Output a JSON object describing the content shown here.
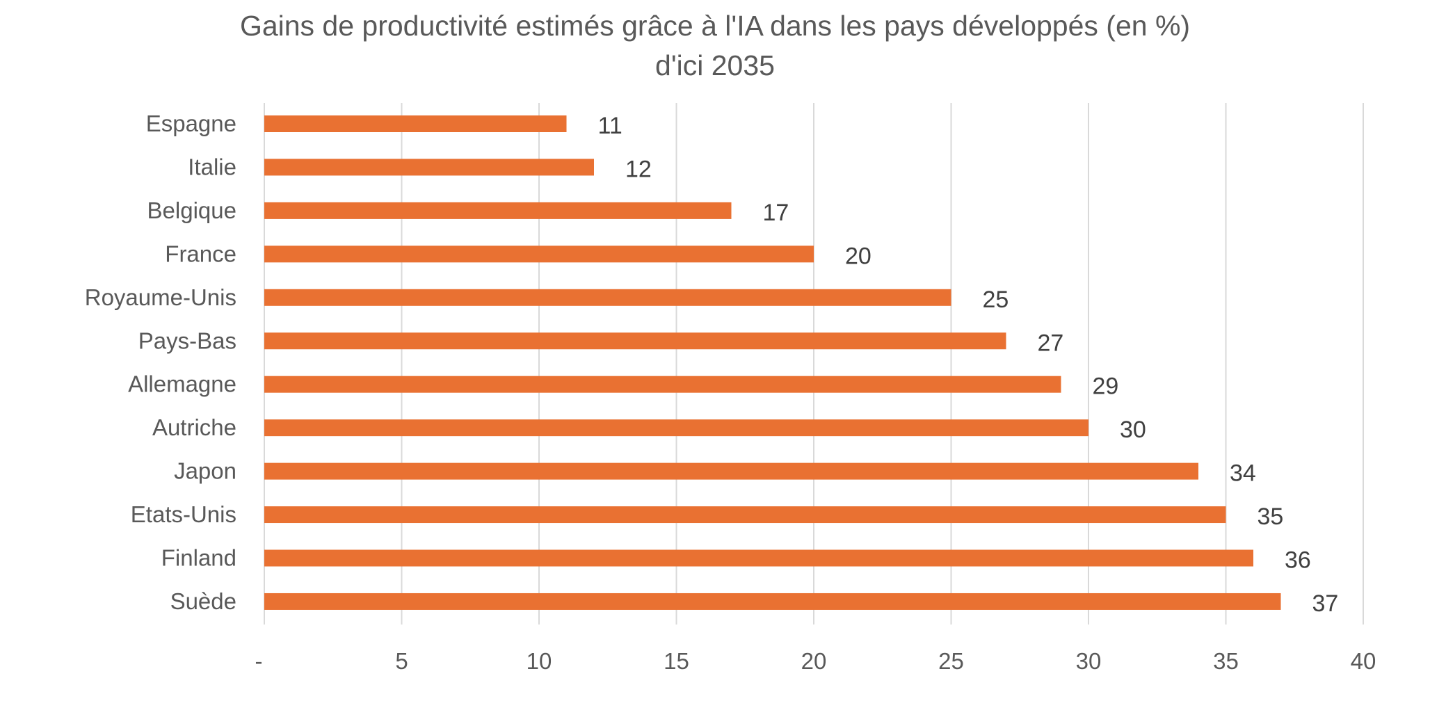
{
  "chart_data": {
    "type": "bar",
    "orientation": "horizontal",
    "title": "Gains de productivité estimés grâce à l'IA dans les pays développés (en %)",
    "title_line2": "d'ici 2035",
    "categories": [
      "Espagne",
      "Italie",
      "Belgique",
      "France",
      "Royaume-Unis",
      "Pays-Bas",
      "Allemagne",
      "Autriche",
      "Japon",
      "Etats-Unis",
      "Finland",
      "Suède"
    ],
    "values": [
      11,
      12,
      17,
      20,
      25,
      27,
      29,
      30,
      34,
      35,
      36,
      37
    ],
    "xlim": [
      0,
      40
    ],
    "xticks": [
      "-",
      "5",
      "10",
      "15",
      "20",
      "25",
      "30",
      "35",
      "40"
    ],
    "xtick_values": [
      0,
      5,
      10,
      15,
      20,
      25,
      30,
      35,
      40
    ],
    "grid": true,
    "legend": "none",
    "bar_color": "#E97132",
    "data_labels": true
  }
}
